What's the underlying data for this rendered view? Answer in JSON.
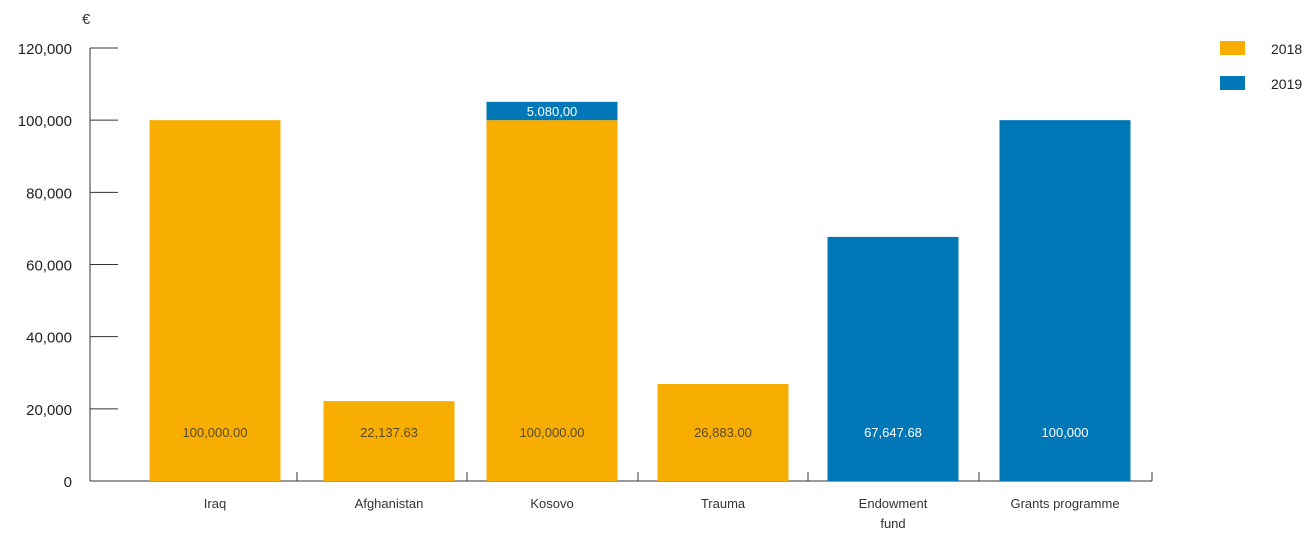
{
  "chart_data": {
    "type": "bar",
    "stacked": true,
    "unit_label": "€",
    "ylim": [
      0,
      120000
    ],
    "yticks": [
      0,
      20000,
      40000,
      60000,
      80000,
      100000,
      120000
    ],
    "ytick_labels": [
      "0",
      "20,000",
      "40,000",
      "60,000",
      "80,000",
      "100,000",
      "120,000"
    ],
    "categories": [
      [
        "Iraq"
      ],
      [
        "Afghanistan"
      ],
      [
        "Kosovo"
      ],
      [
        "Trauma"
      ],
      [
        "Endowment",
        "fund"
      ],
      [
        "Grants programme"
      ]
    ],
    "series": [
      {
        "name": "2018",
        "color": "#F7AE00",
        "values": [
          100000,
          22137.63,
          100000,
          26883,
          0,
          0
        ],
        "labels": [
          "100,000.00",
          "22,137.63",
          "100,000.00",
          "26,883.00",
          "",
          ""
        ]
      },
      {
        "name": "2019",
        "color": "#0077B6",
        "values": [
          0,
          0,
          5080,
          0,
          67647.68,
          100000
        ],
        "labels": [
          "",
          "",
          "5.080,00",
          "",
          "67,647.68",
          "100,000"
        ]
      }
    ],
    "legend_position": "top-right",
    "grid": false
  }
}
